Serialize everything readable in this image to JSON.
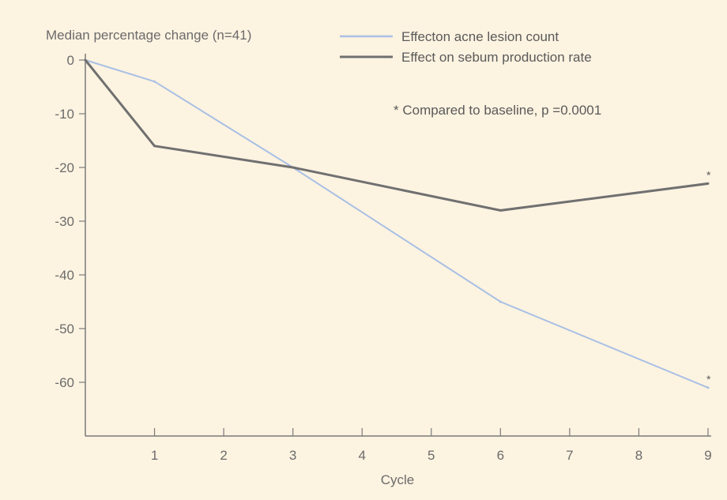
{
  "chart_data": {
    "type": "line",
    "title": "",
    "ylabel": "Median percentage change (n=41)",
    "xlabel": "Cycle",
    "xlim": [
      0,
      9
    ],
    "ylim": [
      -70,
      0
    ],
    "x_ticks": [
      1,
      2,
      3,
      4,
      5,
      6,
      7,
      8,
      9
    ],
    "y_ticks": [
      0,
      -10,
      -20,
      -30,
      -40,
      -50,
      -60
    ],
    "grid": false,
    "legend_position": "top-right",
    "series": [
      {
        "name": "Effecton acne lesion count",
        "color": "#a8c0e4",
        "x": [
          0,
          1,
          3,
          6,
          9
        ],
        "y": [
          0,
          -4,
          -20,
          -45,
          -61
        ],
        "marker_label": "*"
      },
      {
        "name": "Effect on sebum production rate",
        "color": "#707070",
        "x": [
          0,
          1,
          3,
          6,
          9
        ],
        "y": [
          0,
          -16,
          -20,
          -28,
          -23
        ],
        "marker_label": "*"
      }
    ],
    "annotation": "* Compared to baseline, p =0.0001",
    "colors": {
      "background": "#fdf3e1",
      "axis": "#7a7a7a",
      "text": "#6b6b6b"
    }
  }
}
